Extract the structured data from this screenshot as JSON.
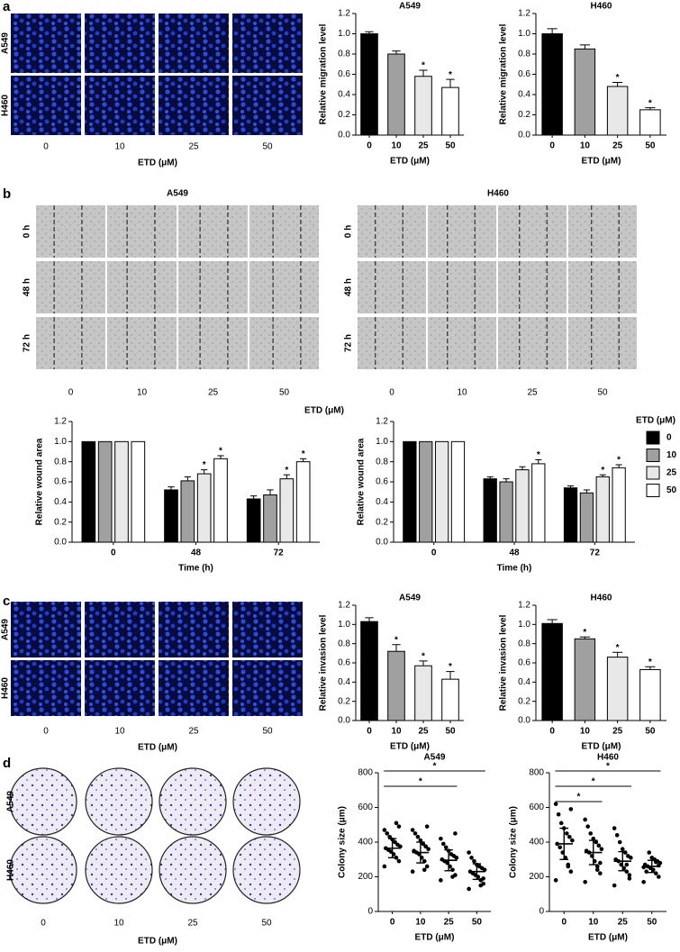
{
  "figure": {
    "panel_letters": [
      "a",
      "b",
      "c",
      "d"
    ],
    "a": {
      "rows": [
        "A549",
        "H460"
      ],
      "cols": [
        "0",
        "10",
        "25",
        "50"
      ],
      "xlabel": "ETD (μM)"
    },
    "b": {
      "groups": [
        {
          "title": "A549",
          "rows": [
            "0 h",
            "48 h",
            "72 h"
          ],
          "cols": [
            "0",
            "10",
            "25",
            "50"
          ]
        },
        {
          "title": "H460",
          "rows": [
            "0 h",
            "48 h",
            "72 h"
          ],
          "cols": [
            "0",
            "10",
            "25",
            "50"
          ]
        }
      ],
      "xlabel": "ETD (μM)"
    },
    "c": {
      "rows": [
        "A549",
        "H460"
      ],
      "cols": [
        "0",
        "10",
        "25",
        "50"
      ],
      "xlabel": "ETD (μM)"
    },
    "d": {
      "rows": [
        "A549",
        "H460"
      ],
      "cols": [
        "0",
        "10",
        "25",
        "50"
      ],
      "xlabel": "ETD (μM)"
    }
  },
  "chart_data": [
    {
      "type": "bar",
      "title": "A549",
      "ylabel": "Relative migration level",
      "xlabel": "ETD (μM)",
      "categories": [
        "0",
        "10",
        "25",
        "50"
      ],
      "values": [
        1.0,
        0.8,
        0.58,
        0.47
      ],
      "errors": [
        0.02,
        0.03,
        0.06,
        0.08
      ],
      "sig": [
        null,
        null,
        "*",
        "*"
      ],
      "colors": [
        "#000000",
        "#a0a0a0",
        "#e8e8e8",
        "#ffffff"
      ],
      "ylim": [
        0,
        1.2
      ],
      "yticks": [
        {
          "value": 0,
          "label": "0.0"
        },
        0.2,
        0.4,
        0.6,
        0.8,
        {
          "value": 1,
          "label": "1.0"
        },
        1.2
      ]
    },
    {
      "type": "bar",
      "title": "H460",
      "ylabel": "Relative migration level",
      "xlabel": "ETD (μM)",
      "categories": [
        "0",
        "10",
        "25",
        "50"
      ],
      "values": [
        1.0,
        0.85,
        0.48,
        0.25
      ],
      "errors": [
        0.05,
        0.04,
        0.04,
        0.02
      ],
      "sig": [
        null,
        null,
        "*",
        "*"
      ],
      "colors": [
        "#000000",
        "#a0a0a0",
        "#e8e8e8",
        "#ffffff"
      ],
      "ylim": [
        0,
        1.2
      ],
      "yticks": [
        {
          "value": 0,
          "label": "0.0"
        },
        0.2,
        0.4,
        0.6,
        0.8,
        {
          "value": 1,
          "label": "1.0"
        },
        1.2
      ]
    },
    {
      "type": "grouped_bar",
      "ylabel": "Relative wound area",
      "xlabel": "Time (h)",
      "categories": [
        "0",
        "48",
        "72"
      ],
      "series": [
        {
          "name": "0",
          "color": "#000000",
          "values": [
            1,
            0.52,
            0.43
          ],
          "errors": [
            null,
            0.03,
            0.03
          ],
          "sig": [
            null,
            null,
            null
          ]
        },
        {
          "name": "10",
          "color": "#a0a0a0",
          "values": [
            1,
            0.61,
            0.47
          ],
          "errors": [
            null,
            0.04,
            0.05
          ],
          "sig": [
            null,
            null,
            null
          ]
        },
        {
          "name": "25",
          "color": "#e8e8e8",
          "values": [
            1,
            0.68,
            0.63
          ],
          "errors": [
            null,
            0.04,
            0.04
          ],
          "sig": [
            null,
            "*",
            "*"
          ]
        },
        {
          "name": "50",
          "color": "#ffffff",
          "values": [
            1,
            0.83,
            0.8
          ],
          "errors": [
            null,
            0.03,
            0.03
          ],
          "sig": [
            null,
            "*",
            "*"
          ]
        }
      ],
      "ylim": [
        0,
        1.2
      ],
      "yticks": [
        {
          "value": 0,
          "label": "0.0"
        },
        0.2,
        0.4,
        0.6,
        0.8,
        {
          "value": 1,
          "label": "1.0"
        },
        1.2
      ]
    },
    {
      "type": "grouped_bar",
      "ylabel": "Relative wound area",
      "xlabel": "Time (h)",
      "categories": [
        "0",
        "48",
        "72"
      ],
      "legend": true,
      "legend_title": "ETD (μM)",
      "series": [
        {
          "name": "0",
          "color": "#000000",
          "values": [
            1,
            0.63,
            0.54
          ],
          "errors": [
            null,
            0.02,
            0.02
          ],
          "sig": [
            null,
            null,
            null
          ]
        },
        {
          "name": "10",
          "color": "#a0a0a0",
          "values": [
            1,
            0.6,
            0.49
          ],
          "errors": [
            null,
            0.03,
            0.03
          ],
          "sig": [
            null,
            null,
            null
          ]
        },
        {
          "name": "25",
          "color": "#e8e8e8",
          "values": [
            1,
            0.72,
            0.65
          ],
          "errors": [
            null,
            0.03,
            0.02
          ],
          "sig": [
            null,
            null,
            "*"
          ]
        },
        {
          "name": "50",
          "color": "#ffffff",
          "values": [
            1,
            0.78,
            0.74
          ],
          "errors": [
            null,
            0.04,
            0.03
          ],
          "sig": [
            null,
            "*",
            "*"
          ]
        }
      ],
      "ylim": [
        0,
        1.2
      ],
      "yticks": [
        {
          "value": 0,
          "label": "0.0"
        },
        0.2,
        0.4,
        0.6,
        0.8,
        {
          "value": 1,
          "label": "1.0"
        },
        1.2
      ]
    },
    {
      "type": "bar",
      "title": "A549",
      "ylabel": "Relative invasion level",
      "xlabel": "ETD (μM)",
      "categories": [
        "0",
        "10",
        "25",
        "50"
      ],
      "values": [
        1.03,
        0.72,
        0.57,
        0.43
      ],
      "errors": [
        0.04,
        0.07,
        0.05,
        0.08
      ],
      "sig": [
        null,
        "*",
        "*",
        "*"
      ],
      "colors": [
        "#000000",
        "#a0a0a0",
        "#e8e8e8",
        "#ffffff"
      ],
      "ylim": [
        0,
        1.2
      ],
      "yticks": [
        {
          "value": 0,
          "label": "0.0"
        },
        0.2,
        0.4,
        0.6,
        0.8,
        {
          "value": 1,
          "label": "1.0"
        },
        1.2
      ]
    },
    {
      "type": "bar",
      "title": "H460",
      "ylabel": "Relative invasion level",
      "xlabel": "ETD (μM)",
      "categories": [
        "0",
        "10",
        "25",
        "50"
      ],
      "values": [
        1.01,
        0.85,
        0.66,
        0.53
      ],
      "errors": [
        0.04,
        0.02,
        0.05,
        0.03
      ],
      "sig": [
        null,
        "*",
        "*",
        "*"
      ],
      "colors": [
        "#000000",
        "#a0a0a0",
        "#e8e8e8",
        "#ffffff"
      ],
      "ylim": [
        0,
        1.2
      ],
      "yticks": [
        {
          "value": 0,
          "label": "0.0"
        },
        0.2,
        0.4,
        0.6,
        0.8,
        {
          "value": 1,
          "label": "1.0"
        },
        1.2
      ]
    },
    {
      "type": "strip",
      "title": "A549",
      "ylabel": "Colony size (μm)",
      "xlabel": "ETD (μM)",
      "categories": [
        "0",
        "10",
        "25",
        "50"
      ],
      "points": [
        [
          260,
          290,
          310,
          330,
          345,
          355,
          365,
          375,
          385,
          400,
          415,
          430,
          450,
          470,
          490,
          510
        ],
        [
          230,
          260,
          290,
          310,
          330,
          340,
          350,
          360,
          375,
          390,
          410,
          430,
          450,
          470,
          490,
          240
        ],
        [
          180,
          210,
          240,
          260,
          280,
          290,
          300,
          310,
          320,
          330,
          350,
          370,
          390,
          420,
          450,
          200
        ],
        [
          130,
          160,
          180,
          200,
          210,
          220,
          230,
          240,
          250,
          260,
          270,
          290,
          310,
          340,
          190,
          150
        ]
      ],
      "mean": [
        365,
        340,
        295,
        230
      ],
      "sd": [
        55,
        60,
        60,
        45
      ],
      "brackets": [
        {
          "from": "0",
          "to": "50",
          "label": "*"
        },
        {
          "from": "0",
          "to": "25",
          "label": "*"
        }
      ],
      "ylim": [
        0,
        800
      ],
      "yticks": [
        0,
        200,
        400,
        600,
        800
      ]
    },
    {
      "type": "strip",
      "title": "H460",
      "ylabel": "Colony size (μm)",
      "xlabel": "ETD (μM)",
      "categories": [
        "0",
        "10",
        "25",
        "50"
      ],
      "points": [
        [
          180,
          230,
          270,
          310,
          340,
          370,
          390,
          410,
          430,
          450,
          480,
          510,
          560,
          620,
          590,
          260
        ],
        [
          170,
          220,
          260,
          290,
          320,
          340,
          350,
          360,
          380,
          400,
          420,
          450,
          490,
          530,
          280,
          240
        ],
        [
          150,
          190,
          230,
          250,
          270,
          290,
          300,
          310,
          320,
          340,
          360,
          400,
          440,
          480,
          210,
          270
        ],
        [
          170,
          200,
          220,
          240,
          250,
          260,
          270,
          280,
          290,
          300,
          310,
          340,
          230,
          255,
          265,
          285
        ]
      ],
      "mean": [
        390,
        340,
        290,
        260
      ],
      "sd": [
        90,
        70,
        55,
        35
      ],
      "brackets": [
        {
          "from": "0",
          "to": "50",
          "label": "*"
        },
        {
          "from": "0",
          "to": "25",
          "label": "*"
        },
        {
          "from": "0",
          "to": "10",
          "label": "*"
        }
      ],
      "ylim": [
        0,
        800
      ],
      "yticks": [
        0,
        200,
        400,
        600,
        800
      ]
    }
  ]
}
